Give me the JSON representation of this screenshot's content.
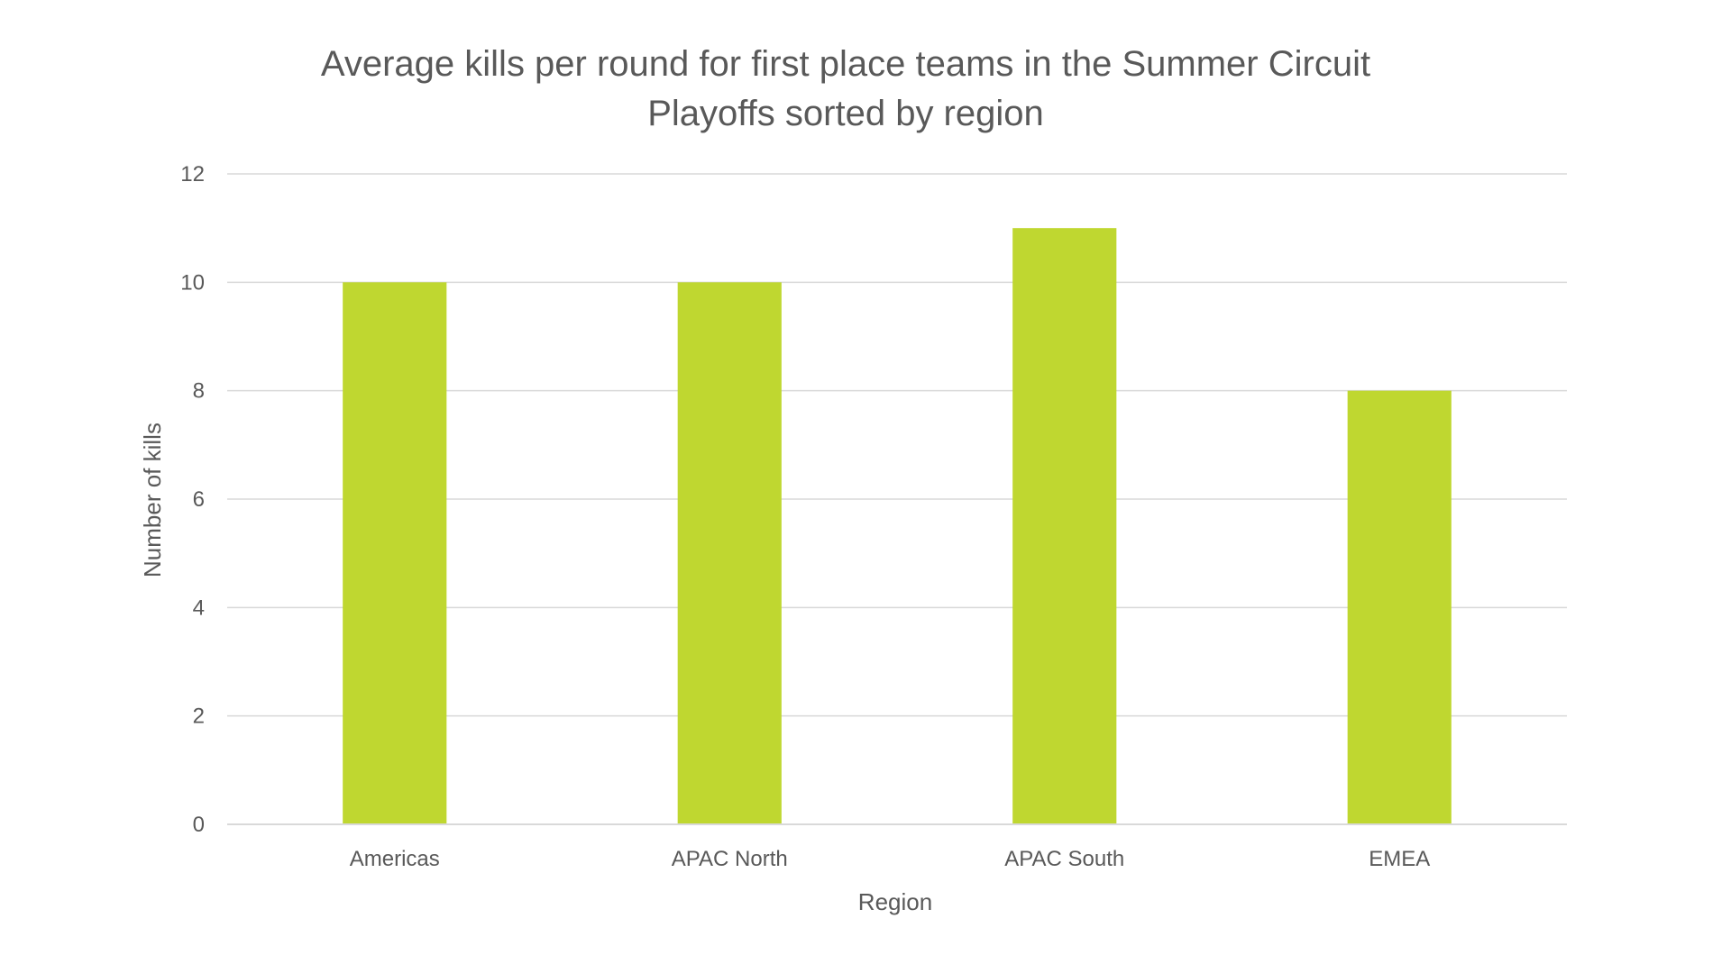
{
  "chart_data": {
    "type": "bar",
    "title_lines": [
      "Average kills per round for first place teams in the Summer Circuit",
      "Playoffs sorted by region"
    ],
    "categories": [
      "Americas",
      "APAC North",
      "APAC South",
      "EMEA"
    ],
    "values": [
      10,
      10,
      11,
      8
    ],
    "xlabel": "Region",
    "ylabel": "Number of kills",
    "ylim": [
      0,
      12
    ],
    "yticks": [
      0,
      2,
      4,
      6,
      8,
      10,
      12
    ],
    "grid": true,
    "legend": "none",
    "bar_color": "#bfd730"
  }
}
